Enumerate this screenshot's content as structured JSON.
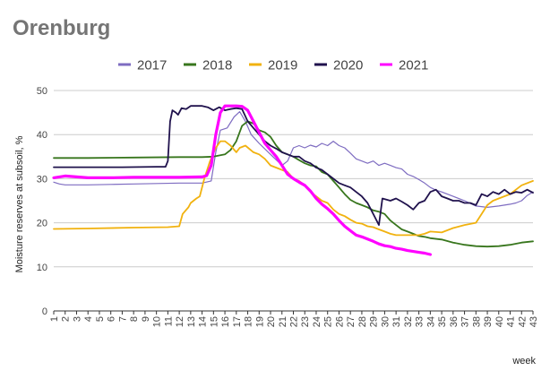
{
  "chart_data": {
    "type": "line",
    "title": "Orenburg",
    "xlabel": "week",
    "ylabel": "Moisture reserves at subsoil, %",
    "xlim": [
      1,
      43
    ],
    "ylim": [
      0,
      50
    ],
    "yticks": [
      0,
      10,
      20,
      30,
      40,
      50
    ],
    "xticks": [
      1,
      2,
      3,
      4,
      5,
      6,
      7,
      8,
      9,
      10,
      11,
      12,
      13,
      14,
      15,
      16,
      17,
      18,
      19,
      20,
      21,
      22,
      23,
      24,
      25,
      26,
      27,
      28,
      29,
      30,
      31,
      32,
      33,
      34,
      35,
      36,
      37,
      38,
      39,
      40,
      41,
      42,
      43
    ],
    "grid": true,
    "legend_position": "top",
    "series": [
      {
        "name": "2017",
        "color": "#7e6cc1",
        "width": 1.2,
        "points": [
          [
            1,
            29.2
          ],
          [
            1.5,
            28.8
          ],
          [
            2,
            28.6
          ],
          [
            4,
            28.6
          ],
          [
            6,
            28.7
          ],
          [
            8,
            28.8
          ],
          [
            10,
            28.9
          ],
          [
            12,
            29.0
          ],
          [
            14,
            29.0
          ],
          [
            14.8,
            29.5
          ],
          [
            15.2,
            36
          ],
          [
            15.6,
            41
          ],
          [
            16.2,
            41.5
          ],
          [
            16.8,
            44
          ],
          [
            17.3,
            45.2
          ],
          [
            17.8,
            43
          ],
          [
            18.3,
            40
          ],
          [
            19,
            38
          ],
          [
            20,
            35.5
          ],
          [
            21,
            33
          ],
          [
            21.5,
            34
          ],
          [
            22,
            37
          ],
          [
            22.5,
            37.5
          ],
          [
            23,
            37
          ],
          [
            23.5,
            37.6
          ],
          [
            24,
            37.2
          ],
          [
            24.5,
            38
          ],
          [
            25,
            37.5
          ],
          [
            25.5,
            38.5
          ],
          [
            26,
            37.5
          ],
          [
            26.5,
            37
          ],
          [
            27,
            35.8
          ],
          [
            27.5,
            34.5
          ],
          [
            28,
            34
          ],
          [
            28.5,
            33.5
          ],
          [
            29,
            34
          ],
          [
            29.5,
            33
          ],
          [
            30,
            33.5
          ],
          [
            30.5,
            33
          ],
          [
            31,
            32.5
          ],
          [
            31.5,
            32.2
          ],
          [
            32,
            31
          ],
          [
            32.5,
            30.5
          ],
          [
            33,
            29.8
          ],
          [
            33.5,
            29
          ],
          [
            34,
            28
          ],
          [
            34.5,
            27.4
          ],
          [
            35,
            27
          ],
          [
            36,
            26
          ],
          [
            37,
            25
          ],
          [
            38,
            23.8
          ],
          [
            39,
            23.5
          ],
          [
            40,
            23.8
          ],
          [
            41,
            24.2
          ],
          [
            41.5,
            24.5
          ],
          [
            42,
            25
          ],
          [
            42.5,
            26.2
          ],
          [
            43,
            27
          ]
        ]
      },
      {
        "name": "2018",
        "color": "#38761d",
        "width": 1.8,
        "points": [
          [
            1,
            34.7
          ],
          [
            4,
            34.7
          ],
          [
            8,
            34.8
          ],
          [
            12,
            34.9
          ],
          [
            14,
            34.9
          ],
          [
            15,
            35
          ],
          [
            16,
            35.5
          ],
          [
            16.5,
            36.5
          ],
          [
            17,
            38.5
          ],
          [
            17.5,
            42
          ],
          [
            18,
            43
          ],
          [
            18.5,
            42.5
          ],
          [
            19,
            41
          ],
          [
            19.5,
            40.5
          ],
          [
            20,
            39.5
          ],
          [
            20.5,
            37.5
          ],
          [
            21,
            36
          ],
          [
            21.5,
            35.5
          ],
          [
            22,
            35
          ],
          [
            22.5,
            34.2
          ],
          [
            23,
            33.5
          ],
          [
            23.5,
            33
          ],
          [
            24,
            32.8
          ],
          [
            24.5,
            31.5
          ],
          [
            25,
            31
          ],
          [
            25.5,
            29.5
          ],
          [
            26,
            28
          ],
          [
            26.5,
            26.5
          ],
          [
            27,
            25.2
          ],
          [
            27.5,
            24.5
          ],
          [
            28,
            24
          ],
          [
            28.5,
            23.5
          ],
          [
            29,
            22.8
          ],
          [
            29.5,
            22.5
          ],
          [
            30,
            22
          ],
          [
            30.5,
            20.5
          ],
          [
            31,
            19.5
          ],
          [
            31.5,
            18.5
          ],
          [
            32,
            18
          ],
          [
            32.5,
            17.5
          ],
          [
            33,
            17
          ],
          [
            33.5,
            16.8
          ],
          [
            34,
            16.5
          ],
          [
            35,
            16.2
          ],
          [
            36,
            15.5
          ],
          [
            37,
            15
          ],
          [
            38,
            14.7
          ],
          [
            39,
            14.6
          ],
          [
            40,
            14.7
          ],
          [
            41,
            15
          ],
          [
            42,
            15.5
          ],
          [
            43,
            15.8
          ]
        ]
      },
      {
        "name": "2019",
        "color": "#f1b20f",
        "width": 1.8,
        "points": [
          [
            1,
            18.6
          ],
          [
            4,
            18.7
          ],
          [
            8,
            18.9
          ],
          [
            11,
            19.0
          ],
          [
            12,
            19.2
          ],
          [
            12.3,
            22
          ],
          [
            12.8,
            23.5
          ],
          [
            13,
            24.5
          ],
          [
            13.5,
            25.5
          ],
          [
            13.8,
            26
          ],
          [
            14.2,
            30
          ],
          [
            14.7,
            34
          ],
          [
            15.2,
            37
          ],
          [
            15.6,
            38.5
          ],
          [
            16,
            38.5
          ],
          [
            16.5,
            37.5
          ],
          [
            17,
            36
          ],
          [
            17.3,
            37
          ],
          [
            17.8,
            37.5
          ],
          [
            18.5,
            36
          ],
          [
            19,
            35.5
          ],
          [
            19.5,
            34.5
          ],
          [
            20,
            33
          ],
          [
            20.5,
            32.5
          ],
          [
            21,
            32
          ],
          [
            21.5,
            31.5
          ],
          [
            22,
            30
          ],
          [
            22.5,
            29.5
          ],
          [
            23,
            28.5
          ],
          [
            23.5,
            27
          ],
          [
            24,
            26
          ],
          [
            24.5,
            25
          ],
          [
            25,
            24.5
          ],
          [
            25.5,
            23
          ],
          [
            26,
            22
          ],
          [
            26.5,
            21.5
          ],
          [
            27,
            20.7
          ],
          [
            27.5,
            20
          ],
          [
            28,
            19.8
          ],
          [
            28.5,
            19.2
          ],
          [
            29,
            19
          ],
          [
            29.5,
            18.5
          ],
          [
            30,
            18
          ],
          [
            30.5,
            17.5
          ],
          [
            31,
            17.2
          ],
          [
            32,
            17.2
          ],
          [
            33,
            17.2
          ],
          [
            33.5,
            17.5
          ],
          [
            34,
            18
          ],
          [
            35,
            17.8
          ],
          [
            36,
            18.8
          ],
          [
            37,
            19.5
          ],
          [
            38,
            20
          ],
          [
            38.5,
            22
          ],
          [
            39,
            24
          ],
          [
            39.5,
            25
          ],
          [
            40,
            25.5
          ],
          [
            41,
            26.5
          ],
          [
            41.5,
            27.5
          ],
          [
            42,
            28.5
          ],
          [
            43,
            29.5
          ]
        ]
      },
      {
        "name": "2020",
        "color": "#20124d",
        "width": 1.8,
        "points": [
          [
            1,
            32.6
          ],
          [
            4,
            32.6
          ],
          [
            7,
            32.6
          ],
          [
            10,
            32.7
          ],
          [
            10.8,
            32.7
          ],
          [
            11,
            34
          ],
          [
            11.2,
            43
          ],
          [
            11.4,
            45.5
          ],
          [
            11.7,
            45
          ],
          [
            11.9,
            44.5
          ],
          [
            12.2,
            46
          ],
          [
            12.6,
            45.8
          ],
          [
            13,
            46.5
          ],
          [
            14,
            46.5
          ],
          [
            14.5,
            46.2
          ],
          [
            15,
            45.5
          ],
          [
            15.5,
            46.2
          ],
          [
            16,
            45.5
          ],
          [
            16.5,
            45.8
          ],
          [
            17,
            46
          ],
          [
            17.5,
            45.8
          ],
          [
            18,
            43
          ],
          [
            18.5,
            41.5
          ],
          [
            19,
            40
          ],
          [
            19.5,
            38.5
          ],
          [
            20,
            37.5
          ],
          [
            20.5,
            36.8
          ],
          [
            21,
            36
          ],
          [
            21.5,
            35.5
          ],
          [
            22,
            35
          ],
          [
            22.5,
            35
          ],
          [
            23,
            34
          ],
          [
            23.5,
            33.5
          ],
          [
            24,
            32.5
          ],
          [
            24.5,
            32
          ],
          [
            25,
            31
          ],
          [
            25.5,
            30
          ],
          [
            26,
            29
          ],
          [
            26.5,
            28.5
          ],
          [
            27,
            28
          ],
          [
            27.5,
            27
          ],
          [
            28,
            26
          ],
          [
            28.5,
            24.5
          ],
          [
            29,
            22
          ],
          [
            29.5,
            19.5
          ],
          [
            29.8,
            25.5
          ],
          [
            30.5,
            25
          ],
          [
            31,
            25.5
          ],
          [
            31.5,
            24.8
          ],
          [
            32,
            24
          ],
          [
            32.5,
            23
          ],
          [
            33,
            24.5
          ],
          [
            33.5,
            25
          ],
          [
            34,
            27
          ],
          [
            34.5,
            27.5
          ],
          [
            35,
            26
          ],
          [
            35.5,
            25.5
          ],
          [
            36,
            25
          ],
          [
            36.5,
            25
          ],
          [
            37,
            24.5
          ],
          [
            37.5,
            24.5
          ],
          [
            38,
            24
          ],
          [
            38.5,
            26.5
          ],
          [
            39,
            26
          ],
          [
            39.5,
            27
          ],
          [
            40,
            26.5
          ],
          [
            40.5,
            27.5
          ],
          [
            41,
            26.5
          ],
          [
            41.5,
            27
          ],
          [
            42,
            26.8
          ],
          [
            42.5,
            27.5
          ],
          [
            43,
            26.8
          ]
        ]
      },
      {
        "name": "2021",
        "color": "#ff00ff",
        "width": 3.2,
        "points": [
          [
            1,
            30.2
          ],
          [
            1.5,
            30.4
          ],
          [
            2,
            30.6
          ],
          [
            4,
            30.2
          ],
          [
            6,
            30.2
          ],
          [
            8,
            30.3
          ],
          [
            10,
            30.3
          ],
          [
            12,
            30.3
          ],
          [
            14,
            30.4
          ],
          [
            14.4,
            30.7
          ],
          [
            14.8,
            33
          ],
          [
            15.2,
            40
          ],
          [
            15.6,
            45
          ],
          [
            16,
            46.5
          ],
          [
            17,
            46.5
          ],
          [
            17.5,
            46.4
          ],
          [
            18,
            45.5
          ],
          [
            18.5,
            43
          ],
          [
            19,
            40.5
          ],
          [
            19.5,
            38
          ],
          [
            20,
            36.5
          ],
          [
            20.5,
            35
          ],
          [
            21,
            33
          ],
          [
            21.5,
            31
          ],
          [
            22,
            30
          ],
          [
            22.5,
            29.2
          ],
          [
            23,
            28.5
          ],
          [
            23.5,
            27.2
          ],
          [
            24,
            25.5
          ],
          [
            24.5,
            24.2
          ],
          [
            25,
            23.2
          ],
          [
            25.5,
            22
          ],
          [
            26,
            20.5
          ],
          [
            26.5,
            19.2
          ],
          [
            27,
            18.2
          ],
          [
            27.5,
            17.2
          ],
          [
            28,
            16.8
          ],
          [
            28.5,
            16.3
          ],
          [
            29,
            15.8
          ],
          [
            29.5,
            15.2
          ],
          [
            30,
            14.8
          ],
          [
            30.5,
            14.6
          ],
          [
            31,
            14.2
          ],
          [
            31.5,
            14.0
          ],
          [
            32,
            13.7
          ],
          [
            32.5,
            13.5
          ],
          [
            33,
            13.3
          ],
          [
            33.5,
            13.1
          ],
          [
            34,
            12.8
          ]
        ]
      }
    ]
  }
}
